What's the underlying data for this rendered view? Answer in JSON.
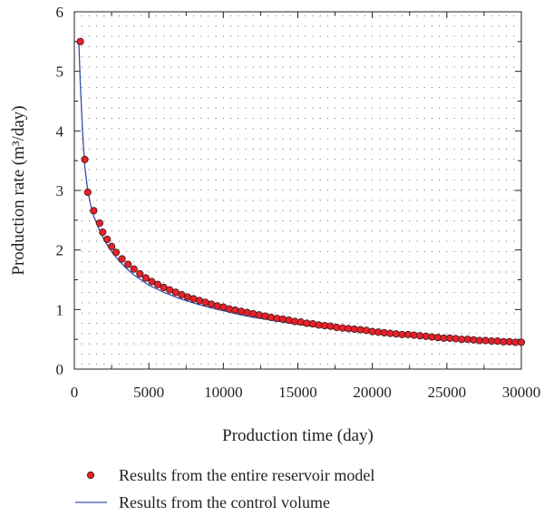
{
  "chart_data": {
    "type": "scatter",
    "xlabel": "Production time (day)",
    "ylabel": "Production rate (m³/day)",
    "xlim": [
      0,
      30000
    ],
    "ylim": [
      0,
      6
    ],
    "xticks": [
      "0",
      "5000",
      "10000",
      "15000",
      "20000",
      "25000",
      "30000"
    ],
    "yticks": [
      "0",
      "1",
      "2",
      "3",
      "4",
      "5",
      "6"
    ],
    "grid": "dotted",
    "legend_position": "bottom",
    "series": [
      {
        "name": "Results from the entire reservoir model",
        "style": "markers",
        "color": "#e8202a",
        "edge_color": "#3a1a1a",
        "x": [
          400,
          700,
          900,
          1300,
          1700,
          1900,
          2200,
          2500,
          2800,
          3200,
          3600,
          4000,
          4400,
          4800,
          5200,
          5600,
          6000,
          6400,
          6800,
          7200,
          7600,
          8000,
          8400,
          8800,
          9200,
          9600,
          10000,
          10400,
          10800,
          11200,
          11600,
          12000,
          12400,
          12800,
          13200,
          13600,
          14000,
          14400,
          14800,
          15200,
          15600,
          16000,
          16400,
          16800,
          17200,
          17600,
          18000,
          18400,
          18800,
          19200,
          19600,
          20000,
          20400,
          20800,
          21200,
          21600,
          22000,
          22400,
          22800,
          23200,
          23600,
          24000,
          24400,
          24800,
          25200,
          25600,
          26000,
          26400,
          26800,
          27200,
          27600,
          28000,
          28400,
          28800,
          29200,
          29600,
          30000
        ],
        "y": [
          5.5,
          3.52,
          2.97,
          2.66,
          2.45,
          2.3,
          2.18,
          2.06,
          1.96,
          1.85,
          1.76,
          1.68,
          1.6,
          1.53,
          1.47,
          1.42,
          1.37,
          1.33,
          1.29,
          1.25,
          1.21,
          1.18,
          1.15,
          1.12,
          1.09,
          1.06,
          1.04,
          1.01,
          0.99,
          0.97,
          0.95,
          0.93,
          0.91,
          0.89,
          0.87,
          0.85,
          0.84,
          0.82,
          0.8,
          0.79,
          0.77,
          0.76,
          0.74,
          0.73,
          0.72,
          0.7,
          0.69,
          0.68,
          0.67,
          0.66,
          0.65,
          0.63,
          0.62,
          0.61,
          0.6,
          0.59,
          0.58,
          0.58,
          0.57,
          0.56,
          0.55,
          0.54,
          0.53,
          0.52,
          0.52,
          0.51,
          0.5,
          0.5,
          0.49,
          0.48,
          0.48,
          0.47,
          0.47,
          0.46,
          0.46,
          0.45,
          0.45
        ]
      },
      {
        "name": "Results from the control volume",
        "style": "line",
        "color": "#3b4fa8",
        "x": [
          300,
          400,
          550,
          700,
          900,
          1100,
          1300,
          1600,
          2000,
          2500,
          3000,
          3500,
          4000,
          5000,
          6000,
          7000,
          8000,
          9000,
          10000,
          11000,
          12000,
          13000,
          14000,
          15000,
          16000,
          17000,
          18000,
          19000,
          20000,
          21000,
          22000,
          23000,
          24000,
          25000,
          26000,
          27000,
          28000,
          29000,
          30000
        ],
        "y": [
          5.5,
          4.8,
          4.0,
          3.4,
          3.0,
          2.75,
          2.57,
          2.38,
          2.17,
          1.97,
          1.82,
          1.69,
          1.58,
          1.41,
          1.29,
          1.19,
          1.11,
          1.04,
          0.98,
          0.92,
          0.87,
          0.83,
          0.79,
          0.75,
          0.72,
          0.69,
          0.66,
          0.63,
          0.61,
          0.59,
          0.57,
          0.55,
          0.53,
          0.51,
          0.49,
          0.48,
          0.46,
          0.45,
          0.44
        ]
      }
    ]
  }
}
